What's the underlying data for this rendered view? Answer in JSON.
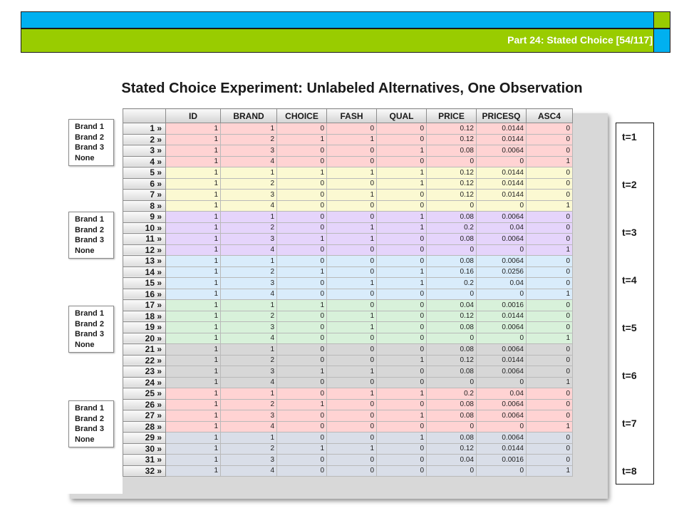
{
  "header": {
    "part_label": "Part 24: Stated Choice [54/117]"
  },
  "title": "Stated Choice Experiment: Unlabeled Alternatives, One Observation",
  "brand_box": [
    "Brand 1",
    "Brand 2",
    "Brand 3",
    "None"
  ],
  "table": {
    "columns": [
      "ID",
      "BRAND",
      "CHOICE",
      "FASH",
      "QUAL",
      "PRICE",
      "PRICESQ",
      "ASC4"
    ],
    "row_labels": [
      "1 »",
      "2 »",
      "3 »",
      "4 »",
      "5 »",
      "6 »",
      "7 »",
      "8 »",
      "9 »",
      "10 »",
      "11 »",
      "12 »",
      "13 »",
      "14 »",
      "15 »",
      "16 »",
      "17 »",
      "18 »",
      "19 »",
      "20 »",
      "21 »",
      "22 »",
      "23 »",
      "24 »",
      "25 »",
      "26 »",
      "27 »",
      "28 »",
      "29 »",
      "30 »",
      "31 »",
      "32 »"
    ],
    "rows": [
      [
        "1",
        "1",
        "0",
        "0",
        "0",
        "0.12",
        "0.0144",
        "0"
      ],
      [
        "1",
        "2",
        "1",
        "1",
        "0",
        "0.12",
        "0.0144",
        "0"
      ],
      [
        "1",
        "3",
        "0",
        "0",
        "1",
        "0.08",
        "0.0064",
        "0"
      ],
      [
        "1",
        "4",
        "0",
        "0",
        "0",
        "0",
        "0",
        "1"
      ],
      [
        "1",
        "1",
        "1",
        "1",
        "1",
        "0.12",
        "0.0144",
        "0"
      ],
      [
        "1",
        "2",
        "0",
        "0",
        "1",
        "0.12",
        "0.0144",
        "0"
      ],
      [
        "1",
        "3",
        "0",
        "1",
        "0",
        "0.12",
        "0.0144",
        "0"
      ],
      [
        "1",
        "4",
        "0",
        "0",
        "0",
        "0",
        "0",
        "1"
      ],
      [
        "1",
        "1",
        "0",
        "0",
        "1",
        "0.08",
        "0.0064",
        "0"
      ],
      [
        "1",
        "2",
        "0",
        "1",
        "1",
        "0.2",
        "0.04",
        "0"
      ],
      [
        "1",
        "3",
        "1",
        "1",
        "0",
        "0.08",
        "0.0064",
        "0"
      ],
      [
        "1",
        "4",
        "0",
        "0",
        "0",
        "0",
        "0",
        "1"
      ],
      [
        "1",
        "1",
        "0",
        "0",
        "0",
        "0.08",
        "0.0064",
        "0"
      ],
      [
        "1",
        "2",
        "1",
        "0",
        "1",
        "0.16",
        "0.0256",
        "0"
      ],
      [
        "1",
        "3",
        "0",
        "1",
        "1",
        "0.2",
        "0.04",
        "0"
      ],
      [
        "1",
        "4",
        "0",
        "0",
        "0",
        "0",
        "0",
        "1"
      ],
      [
        "1",
        "1",
        "1",
        "0",
        "0",
        "0.04",
        "0.0016",
        "0"
      ],
      [
        "1",
        "2",
        "0",
        "1",
        "0",
        "0.12",
        "0.0144",
        "0"
      ],
      [
        "1",
        "3",
        "0",
        "1",
        "0",
        "0.08",
        "0.0064",
        "0"
      ],
      [
        "1",
        "4",
        "0",
        "0",
        "0",
        "0",
        "0",
        "1"
      ],
      [
        "1",
        "1",
        "0",
        "0",
        "0",
        "0.08",
        "0.0064",
        "0"
      ],
      [
        "1",
        "2",
        "0",
        "0",
        "1",
        "0.12",
        "0.0144",
        "0"
      ],
      [
        "1",
        "3",
        "1",
        "1",
        "0",
        "0.08",
        "0.0064",
        "0"
      ],
      [
        "1",
        "4",
        "0",
        "0",
        "0",
        "0",
        "0",
        "1"
      ],
      [
        "1",
        "1",
        "0",
        "1",
        "1",
        "0.2",
        "0.04",
        "0"
      ],
      [
        "1",
        "2",
        "1",
        "0",
        "0",
        "0.08",
        "0.0064",
        "0"
      ],
      [
        "1",
        "3",
        "0",
        "0",
        "1",
        "0.08",
        "0.0064",
        "0"
      ],
      [
        "1",
        "4",
        "0",
        "0",
        "0",
        "0",
        "0",
        "1"
      ],
      [
        "1",
        "1",
        "0",
        "0",
        "1",
        "0.08",
        "0.0064",
        "0"
      ],
      [
        "1",
        "2",
        "1",
        "1",
        "0",
        "0.12",
        "0.0144",
        "0"
      ],
      [
        "1",
        "3",
        "0",
        "0",
        "0",
        "0.04",
        "0.0016",
        "0"
      ],
      [
        "1",
        "4",
        "0",
        "0",
        "0",
        "0",
        "0",
        "1"
      ]
    ]
  },
  "group_colors": [
    "#ffd3d3",
    "#fbf9d2",
    "#e5d4fb",
    "#d9ecfb",
    "#d8f1da",
    "#d7d7d7",
    "#ffd3d3",
    "#d9dee8"
  ],
  "t_labels": [
    "t=1",
    "t=2",
    "t=3",
    "t=4",
    "t=5",
    "t=6",
    "t=7",
    "t=8"
  ]
}
